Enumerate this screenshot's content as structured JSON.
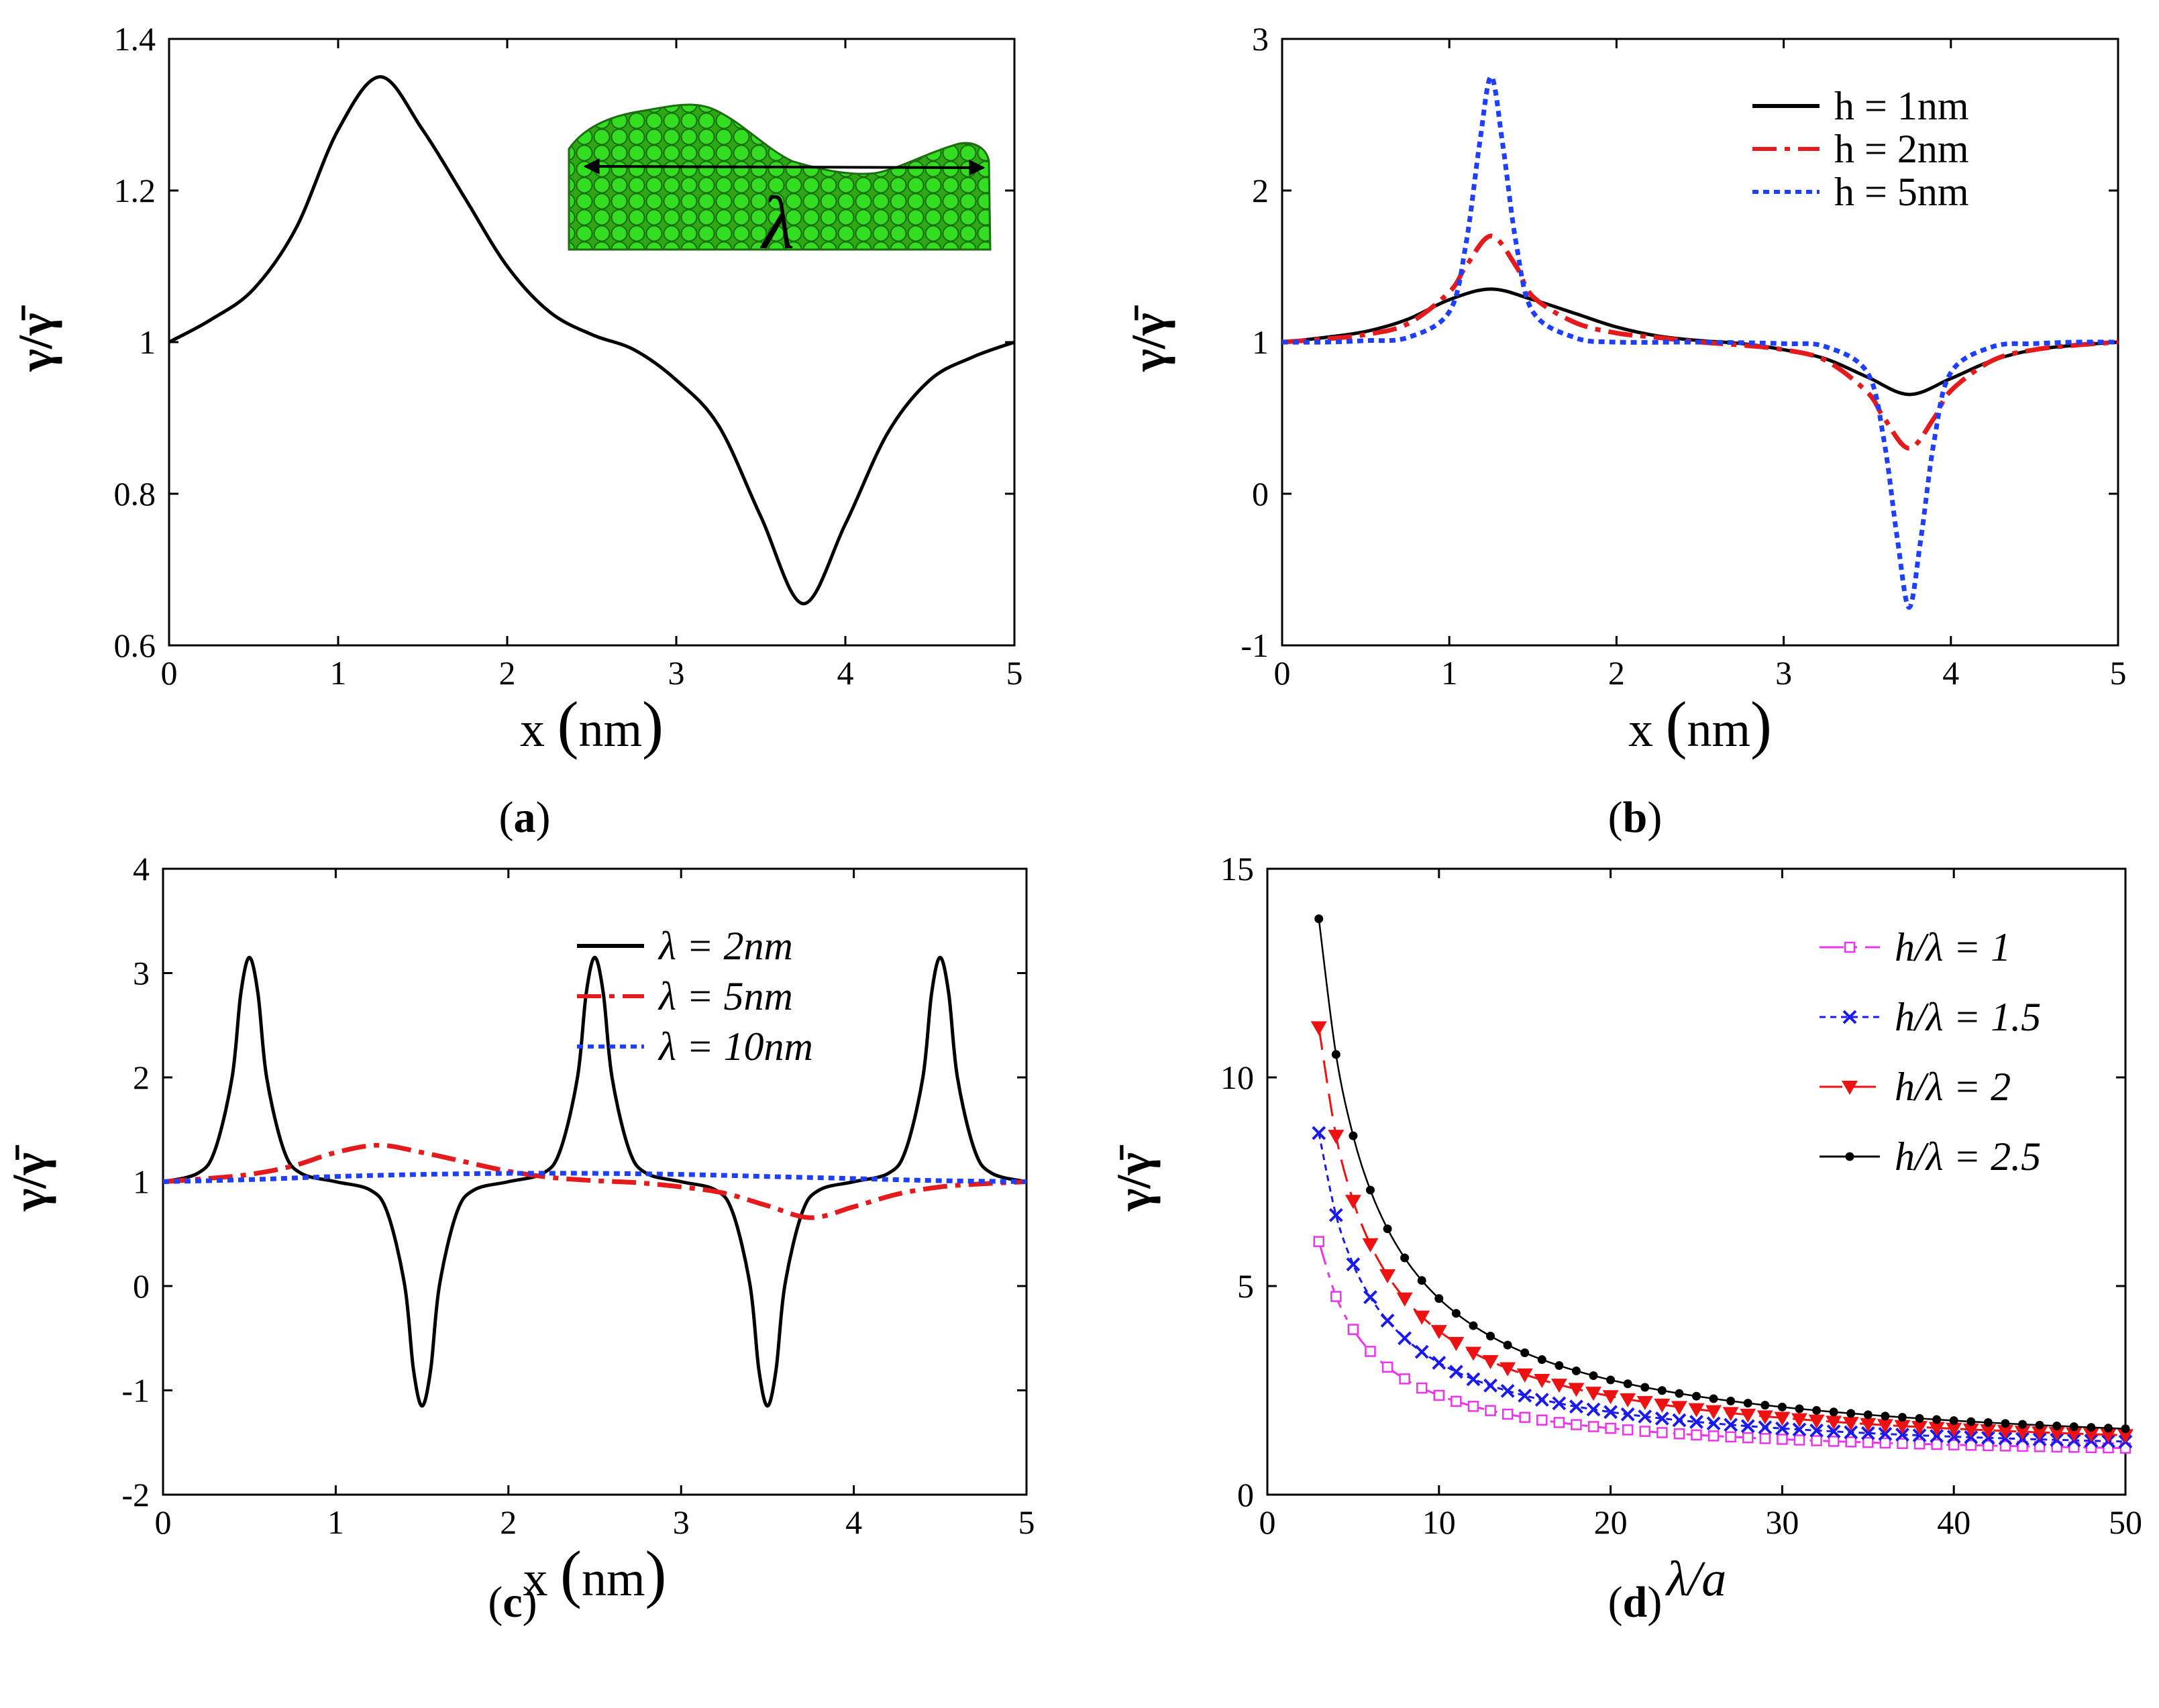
{
  "figure": {
    "panels": [
      {
        "label_prefix": "(",
        "label": "a",
        "label_suffix": ")"
      },
      {
        "label_prefix": "(",
        "label": "b",
        "label_suffix": ")"
      },
      {
        "label_prefix": "(",
        "label": "c",
        "label_suffix": ")"
      },
      {
        "label_prefix": "(",
        "label": "d",
        "label_suffix": ")"
      }
    ],
    "inset": {
      "symbol": "λ",
      "description_icon": "atomic-surface-inset"
    }
  },
  "chart_data": [
    {
      "id": "a",
      "type": "line",
      "xlabel": "x",
      "xunit": "nm",
      "ylabel": "γ/γ̄",
      "xlim": [
        0,
        5
      ],
      "ylim": [
        0.6,
        1.4
      ],
      "xticks": [
        "0",
        "1",
        "2",
        "3",
        "4",
        "5"
      ],
      "yticks": [
        "0.6",
        "0.8",
        "1",
        "1.2",
        "1.4"
      ],
      "series": [
        {
          "name": "γ/γ̄",
          "color": "#000000",
          "style": "solid",
          "x": [
            0,
            0.25,
            0.5,
            0.75,
            1.0,
            1.25,
            1.5,
            1.75,
            2.0,
            2.25,
            2.5,
            2.75,
            3.0,
            3.25,
            3.5,
            3.75,
            4.0,
            4.25,
            4.5,
            4.75,
            5.0
          ],
          "y": [
            1.0,
            1.03,
            1.07,
            1.15,
            1.28,
            1.35,
            1.28,
            1.19,
            1.1,
            1.04,
            1.01,
            0.99,
            0.95,
            0.89,
            0.77,
            0.655,
            0.76,
            0.88,
            0.95,
            0.98,
            1.0
          ]
        }
      ]
    },
    {
      "id": "b",
      "type": "line",
      "xlabel": "x",
      "xunit": "nm",
      "ylabel": "γ/γ̄",
      "xlim": [
        0,
        5
      ],
      "ylim": [
        -1,
        3
      ],
      "xticks": [
        "0",
        "1",
        "2",
        "3",
        "4",
        "5"
      ],
      "yticks": [
        "-1",
        "0",
        "1",
        "2",
        "3"
      ],
      "legend": "top-right",
      "series": [
        {
          "name": "h = 1nm",
          "color": "#000000",
          "style": "solid",
          "x": [
            0,
            0.25,
            0.5,
            0.75,
            1.0,
            1.25,
            1.5,
            1.75,
            2.0,
            2.25,
            2.5,
            2.75,
            3.0,
            3.25,
            3.5,
            3.75,
            4.0,
            4.25,
            4.5,
            4.75,
            5.0
          ],
          "y": [
            1.0,
            1.03,
            1.07,
            1.15,
            1.28,
            1.35,
            1.28,
            1.19,
            1.1,
            1.04,
            1.01,
            0.99,
            0.95,
            0.89,
            0.77,
            0.655,
            0.76,
            0.88,
            0.95,
            0.98,
            1.0
          ]
        },
        {
          "name": "h = 2nm",
          "color": "#e41a1c",
          "style": "dashdot",
          "x": [
            0,
            0.25,
            0.5,
            0.75,
            1.0,
            1.1,
            1.25,
            1.4,
            1.5,
            1.75,
            2.0,
            2.25,
            2.5,
            2.75,
            3.0,
            3.25,
            3.5,
            3.6,
            3.75,
            3.9,
            4.0,
            4.25,
            4.5,
            4.75,
            5.0
          ],
          "y": [
            1.0,
            1.02,
            1.05,
            1.12,
            1.33,
            1.5,
            1.7,
            1.5,
            1.3,
            1.13,
            1.06,
            1.03,
            1.0,
            0.98,
            0.95,
            0.88,
            0.67,
            0.5,
            0.3,
            0.5,
            0.68,
            0.88,
            0.95,
            0.98,
            1.0
          ]
        },
        {
          "name": "h = 5nm",
          "color": "#1f3fff",
          "style": "dotted",
          "x": [
            0,
            0.25,
            0.5,
            0.75,
            1.0,
            1.1,
            1.18,
            1.25,
            1.32,
            1.4,
            1.5,
            1.75,
            2.0,
            2.5,
            3.0,
            3.25,
            3.5,
            3.6,
            3.68,
            3.75,
            3.82,
            3.9,
            4.0,
            4.25,
            4.5,
            4.75,
            5.0
          ],
          "y": [
            1.0,
            1.0,
            1.01,
            1.03,
            1.2,
            1.65,
            2.3,
            2.75,
            2.3,
            1.65,
            1.2,
            1.03,
            1.0,
            1.0,
            0.99,
            0.97,
            0.8,
            0.35,
            -0.3,
            -0.75,
            -0.3,
            0.35,
            0.8,
            0.97,
            0.99,
            1.0,
            1.0
          ]
        }
      ]
    },
    {
      "id": "c",
      "type": "line",
      "xlabel": "x",
      "xunit": "nm",
      "ylabel": "γ/γ̄",
      "xlim": [
        0,
        5
      ],
      "ylim": [
        -2,
        4
      ],
      "xticks": [
        "0",
        "1",
        "2",
        "3",
        "4",
        "5"
      ],
      "yticks": [
        "-2",
        "-1",
        "0",
        "1",
        "2",
        "3",
        "4"
      ],
      "legend": "top-right",
      "series": [
        {
          "name": "λ = 2nm",
          "color": "#000000",
          "style": "solid",
          "x": [
            0,
            0.2,
            0.3,
            0.4,
            0.45,
            0.5,
            0.55,
            0.6,
            0.7,
            0.8,
            1.0,
            1.2,
            1.3,
            1.4,
            1.45,
            1.5,
            1.55,
            1.6,
            1.7,
            1.8,
            2.0,
            2.2,
            2.3,
            2.4,
            2.45,
            2.5,
            2.55,
            2.6,
            2.7,
            2.8,
            3.0,
            3.2,
            3.3,
            3.4,
            3.45,
            3.5,
            3.55,
            3.6,
            3.7,
            3.8,
            4.0,
            4.2,
            4.3,
            4.4,
            4.45,
            4.5,
            4.55,
            4.6,
            4.7,
            4.8,
            5.0
          ],
          "y": [
            1.0,
            1.08,
            1.3,
            2.0,
            2.8,
            3.15,
            2.8,
            2.0,
            1.3,
            1.08,
            1.0,
            0.92,
            0.7,
            0.0,
            -0.8,
            -1.15,
            -0.8,
            0.0,
            0.7,
            0.92,
            1.0,
            1.08,
            1.3,
            2.0,
            2.8,
            3.15,
            2.8,
            2.0,
            1.3,
            1.08,
            1.0,
            0.92,
            0.7,
            0.0,
            -0.8,
            -1.15,
            -0.8,
            0.0,
            0.7,
            0.92,
            1.0,
            1.08,
            1.3,
            2.0,
            2.8,
            3.15,
            2.8,
            2.0,
            1.3,
            1.08,
            1.0
          ]
        },
        {
          "name": "λ = 5nm",
          "color": "#e41a1c",
          "style": "dashdot",
          "x": [
            0,
            0.25,
            0.5,
            0.75,
            1.0,
            1.25,
            1.5,
            1.75,
            2.0,
            2.25,
            2.5,
            2.75,
            3.0,
            3.25,
            3.5,
            3.75,
            4.0,
            4.25,
            4.5,
            4.75,
            5.0
          ],
          "y": [
            1.0,
            1.03,
            1.07,
            1.15,
            1.28,
            1.35,
            1.28,
            1.19,
            1.1,
            1.04,
            1.01,
            0.99,
            0.95,
            0.89,
            0.77,
            0.655,
            0.76,
            0.88,
            0.95,
            0.98,
            1.0
          ]
        },
        {
          "name": "λ = 10nm",
          "color": "#1f3fff",
          "style": "dotted",
          "x": [
            0,
            0.5,
            1.0,
            1.5,
            2.0,
            2.5,
            3.0,
            3.5,
            4.0,
            4.5,
            5.0
          ],
          "y": [
            1.0,
            1.02,
            1.05,
            1.07,
            1.08,
            1.08,
            1.07,
            1.05,
            1.03,
            1.01,
            1.0
          ]
        }
      ]
    },
    {
      "id": "d",
      "type": "line",
      "xlabel": "λ/a",
      "ylabel": "γ/γ̄",
      "xlim": [
        0,
        50
      ],
      "ylim": [
        0,
        15
      ],
      "xticks": [
        "0",
        "10",
        "20",
        "30",
        "40",
        "50"
      ],
      "yticks": [
        "0",
        "5",
        "10",
        "15"
      ],
      "legend": "top-right",
      "series": [
        {
          "name": "h/λ = 1",
          "color": "#ee33ee",
          "style": "dashdot",
          "marker": "square",
          "A": 0.8,
          "B": 15.8,
          "x": [
            3,
            4,
            5,
            6,
            7,
            8,
            9,
            10,
            11,
            12,
            13,
            14,
            15,
            16,
            17,
            18,
            19,
            20,
            21,
            22,
            23,
            24,
            25,
            26,
            27,
            28,
            29,
            30,
            31,
            32,
            33,
            34,
            35,
            36,
            37,
            38,
            39,
            40,
            41,
            42,
            43,
            44,
            45,
            46,
            47,
            48,
            49,
            50
          ]
        },
        {
          "name": "h/λ = 1.5",
          "color": "#1a1aee",
          "style": "dotted",
          "marker": "x",
          "A": 0.8,
          "B": 23.6,
          "x": [
            3,
            4,
            5,
            6,
            7,
            8,
            9,
            10,
            11,
            12,
            13,
            14,
            15,
            16,
            17,
            18,
            19,
            20,
            21,
            22,
            23,
            24,
            25,
            26,
            27,
            28,
            29,
            30,
            31,
            32,
            33,
            34,
            35,
            36,
            37,
            38,
            39,
            40,
            41,
            42,
            43,
            44,
            45,
            46,
            47,
            48,
            49,
            50
          ]
        },
        {
          "name": "h/λ = 2",
          "color": "#ee1111",
          "style": "dashed",
          "marker": "triangle-down",
          "A": 0.8,
          "B": 31.2,
          "x": [
            3,
            4,
            5,
            6,
            7,
            8,
            9,
            10,
            11,
            12,
            13,
            14,
            15,
            16,
            17,
            18,
            19,
            20,
            21,
            22,
            23,
            24,
            25,
            26,
            27,
            28,
            29,
            30,
            31,
            32,
            33,
            34,
            35,
            36,
            37,
            38,
            39,
            40,
            41,
            42,
            43,
            44,
            45,
            46,
            47,
            48,
            49,
            50
          ]
        },
        {
          "name": "h/λ = 2.5",
          "color": "#000000",
          "style": "solid",
          "marker": "dot",
          "A": 0.8,
          "B": 39.0,
          "x": [
            3,
            4,
            5,
            6,
            7,
            8,
            9,
            10,
            11,
            12,
            13,
            14,
            15,
            16,
            17,
            18,
            19,
            20,
            21,
            22,
            23,
            24,
            25,
            26,
            27,
            28,
            29,
            30,
            31,
            32,
            33,
            34,
            35,
            36,
            37,
            38,
            39,
            40,
            41,
            42,
            43,
            44,
            45,
            46,
            47,
            48,
            49,
            50
          ]
        }
      ]
    }
  ]
}
